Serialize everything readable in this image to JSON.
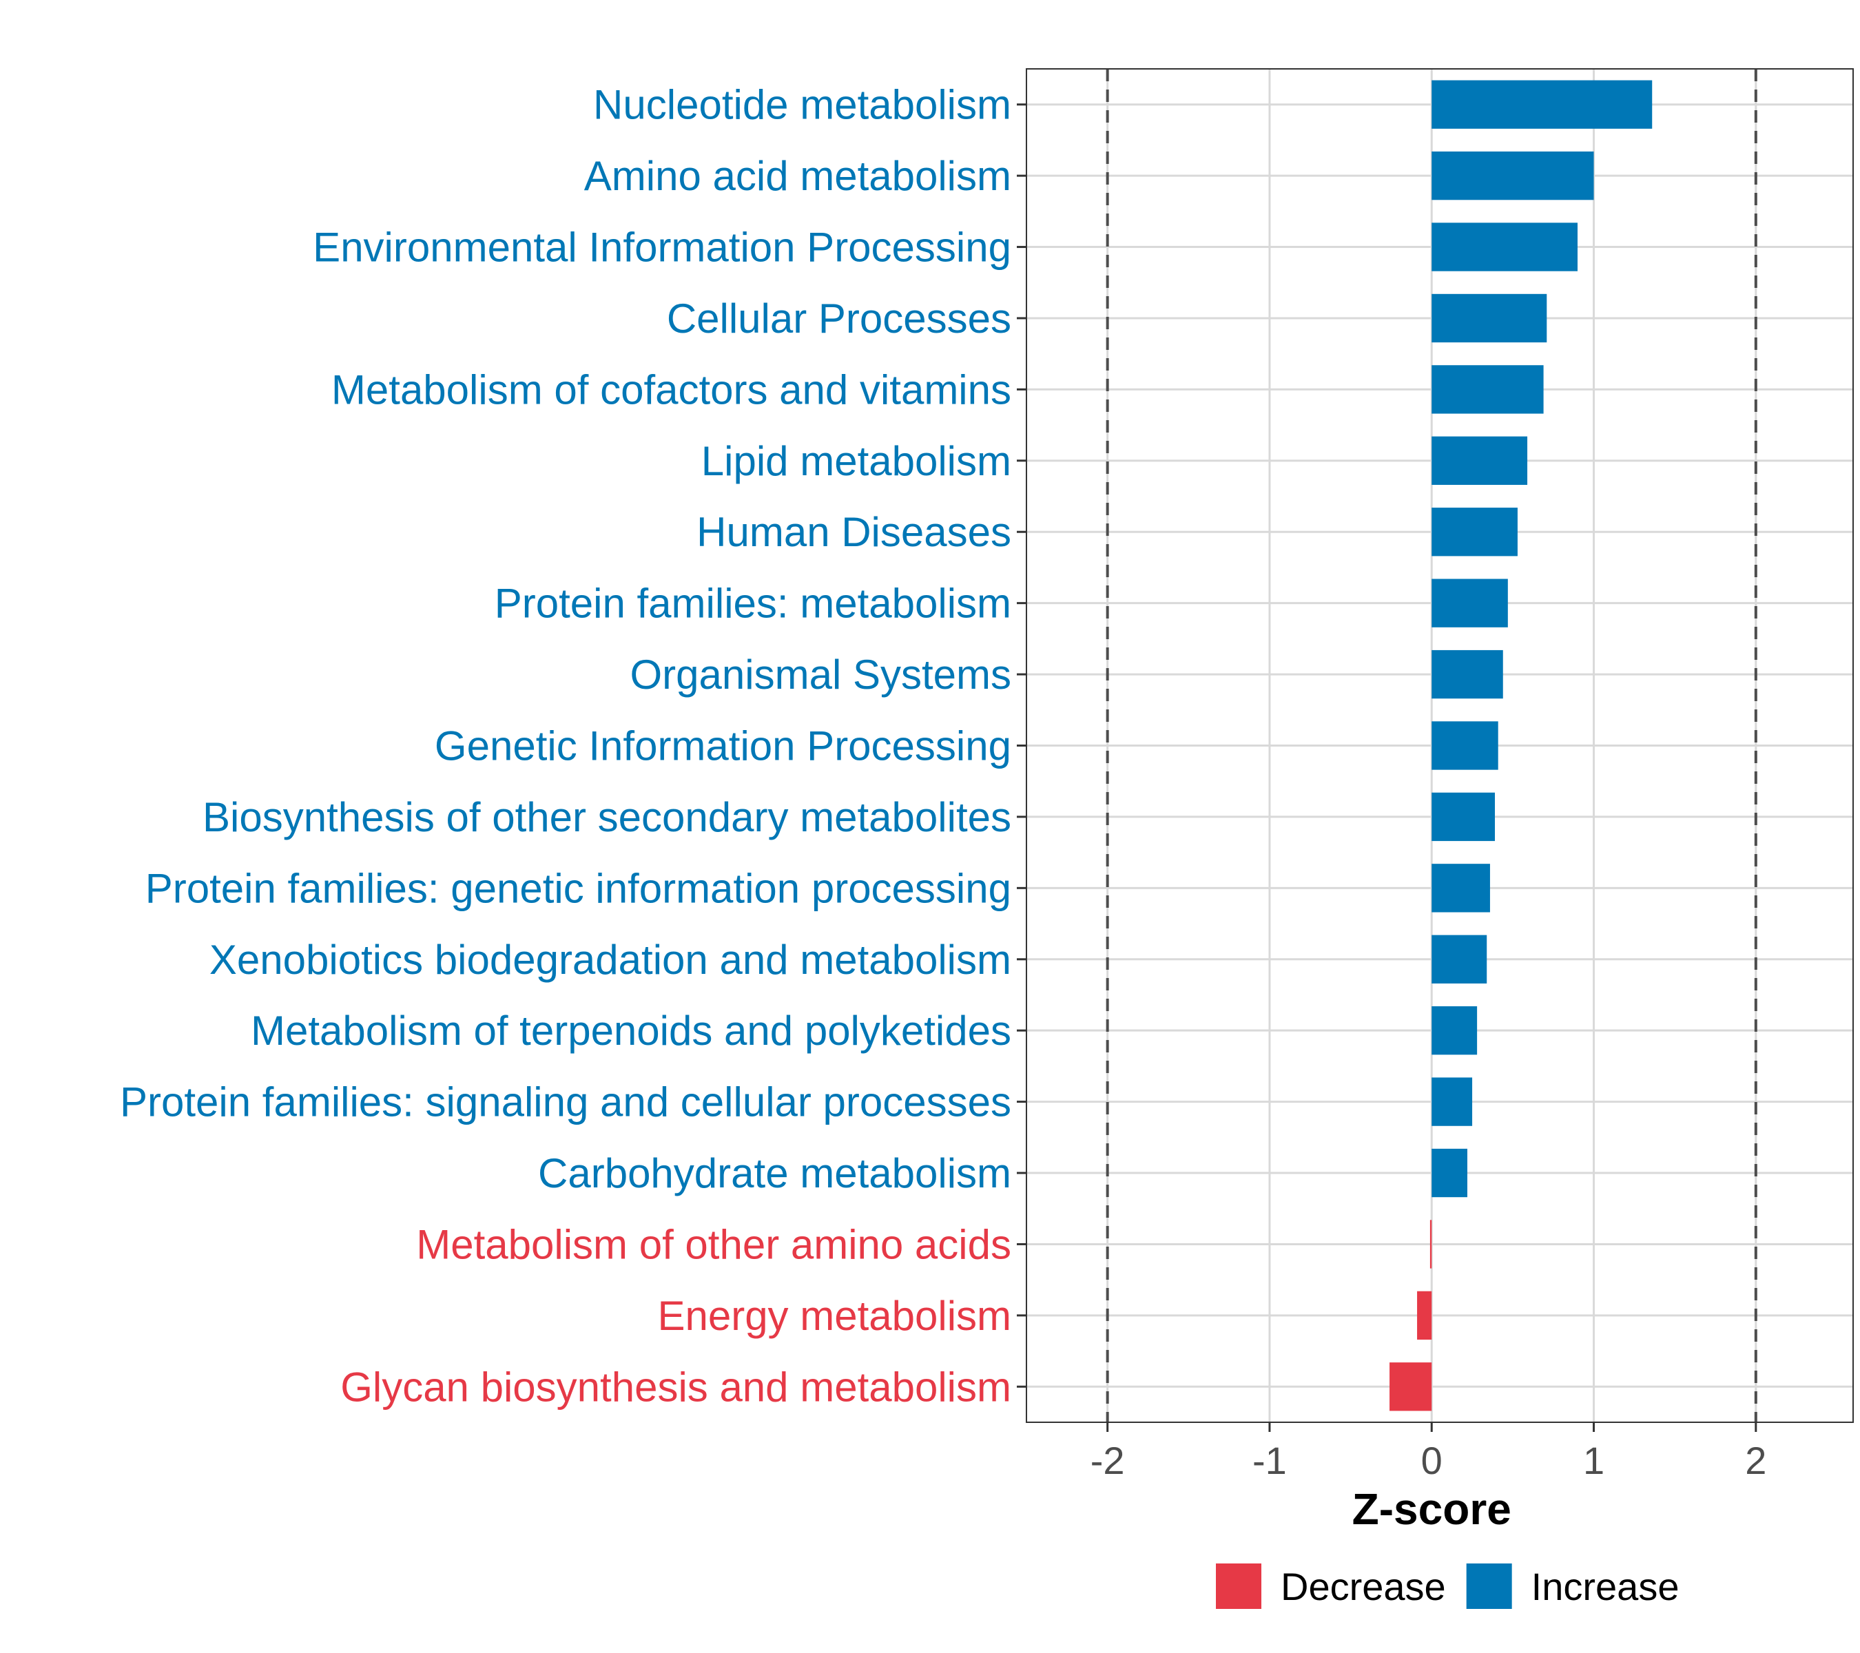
{
  "chart_data": {
    "type": "bar",
    "orientation": "horizontal",
    "title": "",
    "xlabel": "Z-score",
    "ylabel": "",
    "xlim": [
      -2.5,
      2.6
    ],
    "xticks": [
      -2,
      -1,
      0,
      1,
      2
    ],
    "xtick_labels": [
      "-2",
      "-1",
      "0",
      "1",
      "2"
    ],
    "reference_lines": [
      -2,
      2
    ],
    "grid": true,
    "categories": [
      "Nucleotide metabolism",
      "Amino acid metabolism",
      "Environmental Information Processing",
      "Cellular Processes",
      "Metabolism of cofactors and vitamins",
      "Lipid metabolism",
      "Human Diseases",
      "Protein families: metabolism",
      "Organismal Systems",
      "Genetic Information Processing",
      "Biosynthesis of other secondary metabolites",
      "Protein families: genetic information processing",
      "Xenobiotics biodegradation and metabolism",
      "Metabolism of terpenoids and polyketides",
      "Protein families: signaling and cellular processes",
      "Carbohydrate metabolism",
      "Metabolism of other amino acids",
      "Energy metabolism",
      "Glycan biosynthesis and metabolism"
    ],
    "values": [
      1.36,
      1.0,
      0.9,
      0.71,
      0.69,
      0.59,
      0.53,
      0.47,
      0.44,
      0.41,
      0.39,
      0.36,
      0.34,
      0.28,
      0.25,
      0.22,
      -0.01,
      -0.09,
      -0.26
    ],
    "groups": [
      "Increase",
      "Increase",
      "Increase",
      "Increase",
      "Increase",
      "Increase",
      "Increase",
      "Increase",
      "Increase",
      "Increase",
      "Increase",
      "Increase",
      "Increase",
      "Increase",
      "Increase",
      "Increase",
      "Decrease",
      "Decrease",
      "Decrease"
    ],
    "legend": {
      "position": "bottom",
      "entries": [
        {
          "label": "Decrease",
          "color": "#e63946"
        },
        {
          "label": "Increase",
          "color": "#0077b6"
        }
      ]
    },
    "colors": {
      "Increase": "#0077b6",
      "Decrease": "#e63946"
    }
  }
}
